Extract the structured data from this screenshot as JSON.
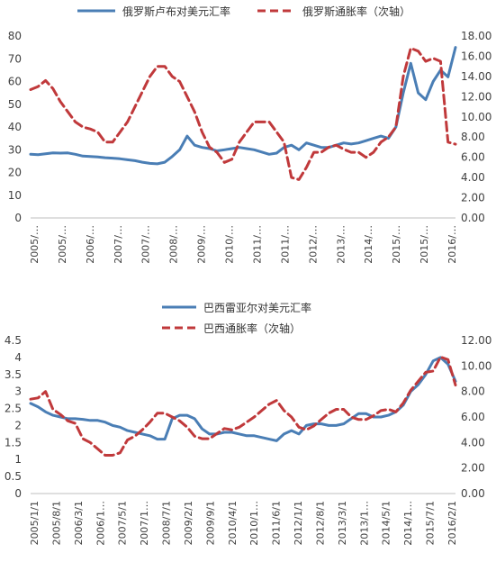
{
  "charts": [
    {
      "type": "line",
      "legend_position": "top",
      "legend": [
        {
          "label": "俄罗斯卢布对美元汇率",
          "color": "#4a7eb5",
          "style": "solid"
        },
        {
          "label": "俄罗斯通胀率（次轴）",
          "color": "#c0393b",
          "style": "dashed"
        }
      ],
      "x_tick_labels": [
        "2005/…",
        "2005/…",
        "2006/…",
        "2007/…",
        "2007/…",
        "2008/…",
        "2009/…",
        "2010/…",
        "2011/…",
        "2011/…",
        "2012/…",
        "2013/…",
        "2014/…",
        "2015/…",
        "2015/…",
        "2016/…"
      ],
      "y_left": {
        "min": 0,
        "max": 80,
        "ticks": [
          "0",
          "10",
          "20",
          "30",
          "40",
          "50",
          "60",
          "70",
          "80"
        ]
      },
      "y_right": {
        "min": 0,
        "max": 18,
        "ticks": [
          "0.00",
          "2.00",
          "4.00",
          "6.00",
          "8.00",
          "10.00",
          "12.00",
          "14.00",
          "16.00",
          "18.00"
        ]
      },
      "grid": false
    },
    {
      "type": "line",
      "legend_position": "top",
      "legend": [
        {
          "label": "巴西雷亚尔对美元汇率",
          "color": "#4a7eb5",
          "style": "solid"
        },
        {
          "label": "巴西通胀率（次轴）",
          "color": "#c0393b",
          "style": "dashed"
        }
      ],
      "x_tick_labels": [
        "2005/1/1",
        "2005/8/1",
        "2006/3/1",
        "2006/1…",
        "2007/5/1",
        "2007/1…",
        "2008/7/1",
        "2009/2/1",
        "2009/9/1",
        "2010/4/1",
        "2010/1…",
        "2011/6/1",
        "2012/1/1",
        "2012/8/1",
        "2013/3/1",
        "2013/1…",
        "2014/5/1",
        "2014/1…",
        "2015/7/1",
        "2016/2/1"
      ],
      "y_left": {
        "min": 0,
        "max": 4.5,
        "ticks": [
          "0",
          "0.5",
          "1",
          "1.5",
          "2",
          "2.5",
          "3",
          "3.5",
          "4",
          "4.5"
        ]
      },
      "y_right": {
        "min": 0,
        "max": 12,
        "ticks": [
          "0.00",
          "2.00",
          "4.00",
          "6.00",
          "8.00",
          "10.00",
          "12.00"
        ]
      },
      "grid": false
    }
  ],
  "chart_data": [
    {
      "type": "line",
      "x": [
        2005.0,
        2005.2,
        2005.4,
        2005.6,
        2005.8,
        2006.0,
        2006.2,
        2006.4,
        2006.6,
        2006.8,
        2007.0,
        2007.2,
        2007.4,
        2007.6,
        2007.8,
        2008.0,
        2008.2,
        2008.4,
        2008.6,
        2008.8,
        2009.0,
        2009.2,
        2009.4,
        2009.6,
        2009.8,
        2010.0,
        2010.2,
        2010.4,
        2010.6,
        2010.8,
        2011.0,
        2011.2,
        2011.4,
        2011.6,
        2011.8,
        2012.0,
        2012.2,
        2012.4,
        2012.6,
        2012.8,
        2013.0,
        2013.2,
        2013.4,
        2013.6,
        2013.8,
        2014.0,
        2014.2,
        2014.4,
        2014.6,
        2014.8,
        2015.0,
        2015.2,
        2015.4,
        2015.6,
        2015.8,
        2016.0,
        2016.2,
        2016.4
      ],
      "series": [
        {
          "name": "俄罗斯卢布对美元汇率",
          "axis": "left",
          "color": "#4a7eb5",
          "dash": "solid",
          "values": [
            28.0,
            27.8,
            28.2,
            28.6,
            28.5,
            28.6,
            28.0,
            27.2,
            27.0,
            26.8,
            26.5,
            26.3,
            26.0,
            25.6,
            25.2,
            24.5,
            24.0,
            23.8,
            24.5,
            27.0,
            30.0,
            36.0,
            32.0,
            31.0,
            30.5,
            29.5,
            30.0,
            30.5,
            31.0,
            30.5,
            30.0,
            29.0,
            28.0,
            28.5,
            31.0,
            32.0,
            30.0,
            33.0,
            32.0,
            31.0,
            31.0,
            32.0,
            33.0,
            32.5,
            33.0,
            34.0,
            35.0,
            36.0,
            35.0,
            40.0,
            55.0,
            68.0,
            55.0,
            52.0,
            60.0,
            65.0,
            62.0,
            75.0
          ]
        },
        {
          "name": "俄罗斯通胀率（次轴）",
          "axis": "right",
          "color": "#c0393b",
          "dash": "dashed",
          "values": [
            12.7,
            13.0,
            13.6,
            12.8,
            11.5,
            10.5,
            9.5,
            9.0,
            8.8,
            8.5,
            7.5,
            7.5,
            8.5,
            9.5,
            11.0,
            12.5,
            14.0,
            15.0,
            15.0,
            14.0,
            13.5,
            12.0,
            10.5,
            8.5,
            7.0,
            6.5,
            5.5,
            5.8,
            7.5,
            8.5,
            9.5,
            9.5,
            9.5,
            8.5,
            7.5,
            4.0,
            3.8,
            5.0,
            6.5,
            6.5,
            7.0,
            7.2,
            6.8,
            6.5,
            6.5,
            6.0,
            6.5,
            7.5,
            8.0,
            9.0,
            14.0,
            16.8,
            16.5,
            15.5,
            15.8,
            15.5,
            7.5,
            7.3
          ]
        }
      ],
      "y_left_range": [
        0,
        80
      ],
      "y_right_range": [
        0,
        18
      ]
    },
    {
      "type": "line",
      "x": [
        2005.0,
        2005.2,
        2005.4,
        2005.6,
        2005.8,
        2006.0,
        2006.2,
        2006.4,
        2006.6,
        2006.8,
        2007.0,
        2007.2,
        2007.4,
        2007.6,
        2007.8,
        2008.0,
        2008.2,
        2008.4,
        2008.6,
        2008.8,
        2009.0,
        2009.2,
        2009.4,
        2009.6,
        2009.8,
        2010.0,
        2010.2,
        2010.4,
        2010.6,
        2010.8,
        2011.0,
        2011.2,
        2011.4,
        2011.6,
        2011.8,
        2012.0,
        2012.2,
        2012.4,
        2012.6,
        2012.8,
        2013.0,
        2013.2,
        2013.4,
        2013.6,
        2013.8,
        2014.0,
        2014.2,
        2014.4,
        2014.6,
        2014.8,
        2015.0,
        2015.2,
        2015.4,
        2015.6,
        2015.8,
        2016.0,
        2016.2,
        2016.4
      ],
      "series": [
        {
          "name": "巴西雷亚尔对美元汇率",
          "axis": "left",
          "color": "#4a7eb5",
          "dash": "solid",
          "values": [
            2.65,
            2.55,
            2.4,
            2.3,
            2.25,
            2.2,
            2.2,
            2.18,
            2.15,
            2.15,
            2.1,
            2.0,
            1.95,
            1.85,
            1.8,
            1.75,
            1.7,
            1.6,
            1.6,
            2.2,
            2.3,
            2.3,
            2.2,
            1.9,
            1.75,
            1.75,
            1.8,
            1.8,
            1.75,
            1.7,
            1.7,
            1.65,
            1.6,
            1.55,
            1.75,
            1.85,
            1.75,
            2.0,
            2.05,
            2.05,
            2.0,
            2.0,
            2.05,
            2.2,
            2.35,
            2.35,
            2.25,
            2.25,
            2.3,
            2.4,
            2.6,
            3.0,
            3.2,
            3.5,
            3.9,
            4.0,
            3.8,
            3.3
          ]
        },
        {
          "name": "巴西通胀率（次轴）",
          "axis": "right",
          "color": "#c0393b",
          "dash": "dashed",
          "values": [
            7.4,
            7.5,
            8.0,
            6.6,
            6.2,
            5.7,
            5.5,
            4.3,
            4.0,
            3.5,
            3.0,
            3.0,
            3.2,
            4.2,
            4.5,
            5.0,
            5.6,
            6.3,
            6.3,
            6.0,
            5.7,
            5.2,
            4.5,
            4.3,
            4.3,
            4.7,
            5.1,
            5.0,
            5.2,
            5.6,
            6.0,
            6.5,
            7.0,
            7.3,
            6.5,
            6.0,
            5.2,
            5.0,
            5.3,
            5.8,
            6.3,
            6.6,
            6.6,
            6.0,
            5.8,
            5.8,
            6.1,
            6.5,
            6.6,
            6.4,
            7.1,
            8.1,
            8.8,
            9.5,
            9.6,
            10.7,
            10.5,
            8.5
          ]
        }
      ],
      "y_left_range": [
        0,
        4.5
      ],
      "y_right_range": [
        0,
        12
      ]
    }
  ]
}
